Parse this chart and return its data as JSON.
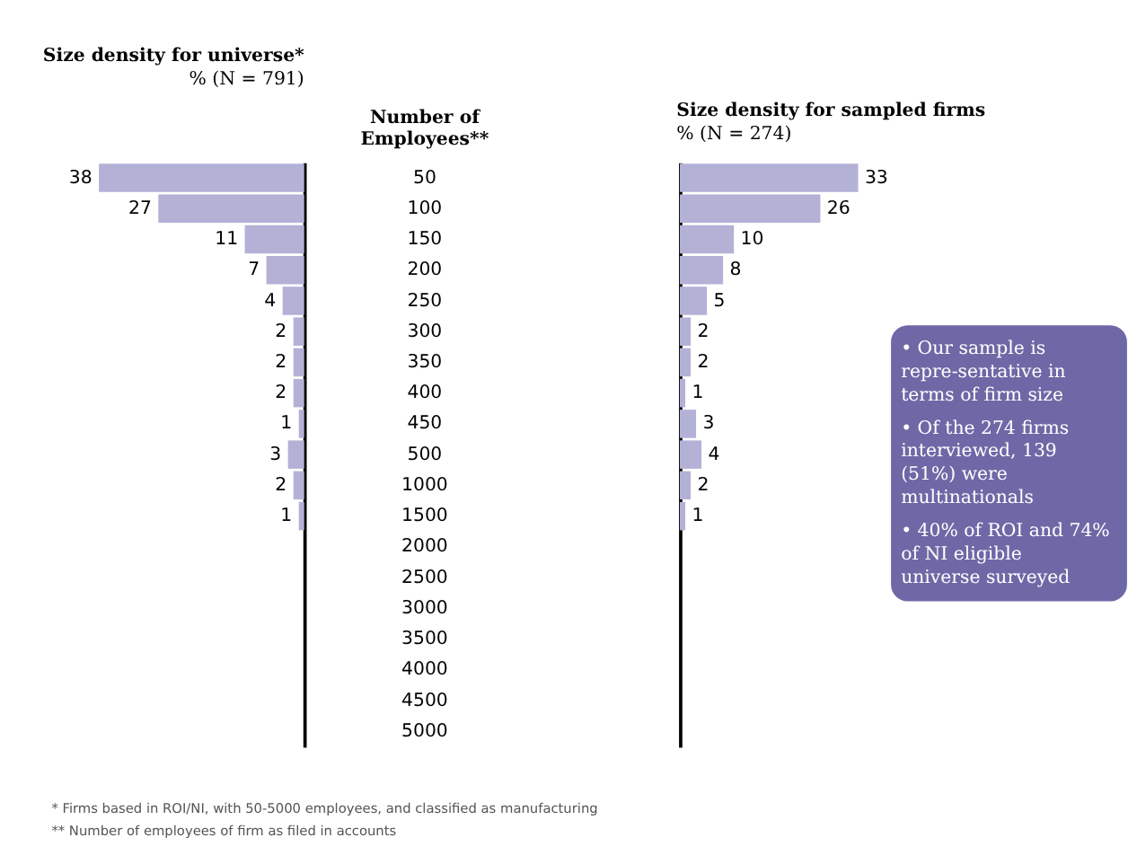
{
  "chart_data": [
    {
      "type": "bar",
      "orientation": "horizontal",
      "title": "Size density for universe*",
      "subtitle": "% (N = 791)",
      "ylabel": "Number of Employees**",
      "categories": [
        "50",
        "100",
        "150",
        "200",
        "250",
        "300",
        "350",
        "400",
        "450",
        "500",
        "1000",
        "1500",
        "2000",
        "2500",
        "3000",
        "3500",
        "4000",
        "4500",
        "5000"
      ],
      "values": [
        38,
        27,
        11,
        7,
        4,
        2,
        2,
        2,
        1,
        3,
        2,
        1,
        null,
        null,
        null,
        null,
        null,
        null,
        null
      ],
      "color": "#b3b1d6",
      "data_labels": true,
      "tick_labels": "y",
      "annotations": [
        "* Firms based in ROI/NI, with 50-5000 employees, and classified as manufacturing",
        "** Number of employees of firm as filed in accounts"
      ]
    },
    {
      "type": "bar",
      "orientation": "horizontal",
      "title": "Size density for sampled firms",
      "subtitle": "% (N = 274)",
      "categories": [
        "50",
        "100",
        "150",
        "200",
        "250",
        "300",
        "350",
        "400",
        "450",
        "500",
        "1000",
        "1500",
        "2000",
        "2500",
        "3000",
        "3500",
        "4000",
        "4500",
        "5000"
      ],
      "values": [
        33,
        26,
        10,
        8,
        5,
        2,
        2,
        1,
        3,
        4,
        2,
        1,
        null,
        null,
        null,
        null,
        null,
        null,
        null
      ],
      "color": "#b3b1d6",
      "data_labels": true,
      "tick_labels": false,
      "annotations": [
        "• Our sample is repre-sentative in terms of firm size",
        "• Of the 274 firms interviewed, 139 (51%) were multinationals",
        "• 40% of ROI and 74% of NI eligible universe surveyed"
      ]
    }
  ]
}
